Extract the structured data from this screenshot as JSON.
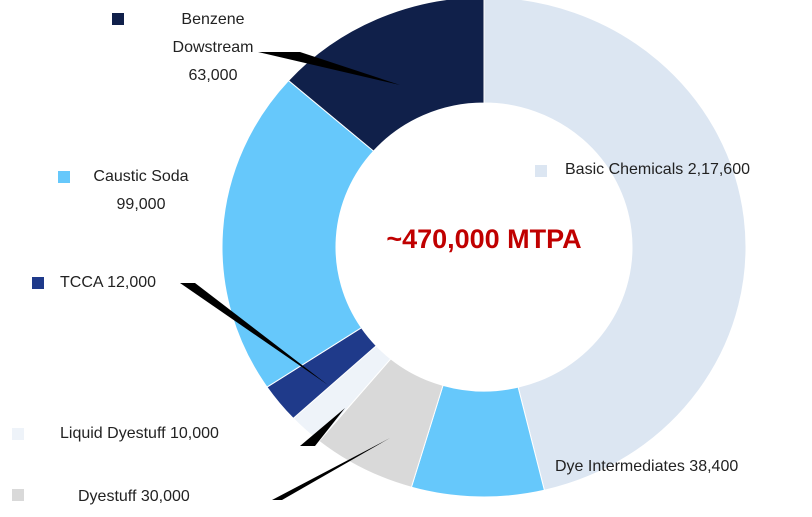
{
  "chart_data": {
    "type": "donut",
    "center_text": "~470,000 MTPA",
    "categories": [
      "Basic Chemicals",
      "Dye Intermediates",
      "Dyestuff",
      "Liquid Dyestuff",
      "TCCA",
      "Caustic Soda",
      "Benzene Dowstream"
    ],
    "values": [
      217600,
      38400,
      30000,
      10000,
      12000,
      99000,
      63000
    ],
    "value_labels": [
      "2,17,600",
      "38,400",
      "30,000",
      "10,000",
      "12,000",
      "99,000",
      "63,000"
    ],
    "colors": [
      "#dce6f2",
      "#66c8fb",
      "#d9d9d9",
      "#eef3f9",
      "#1f3a8a",
      "#66c8fb",
      "#10204a"
    ]
  }
}
